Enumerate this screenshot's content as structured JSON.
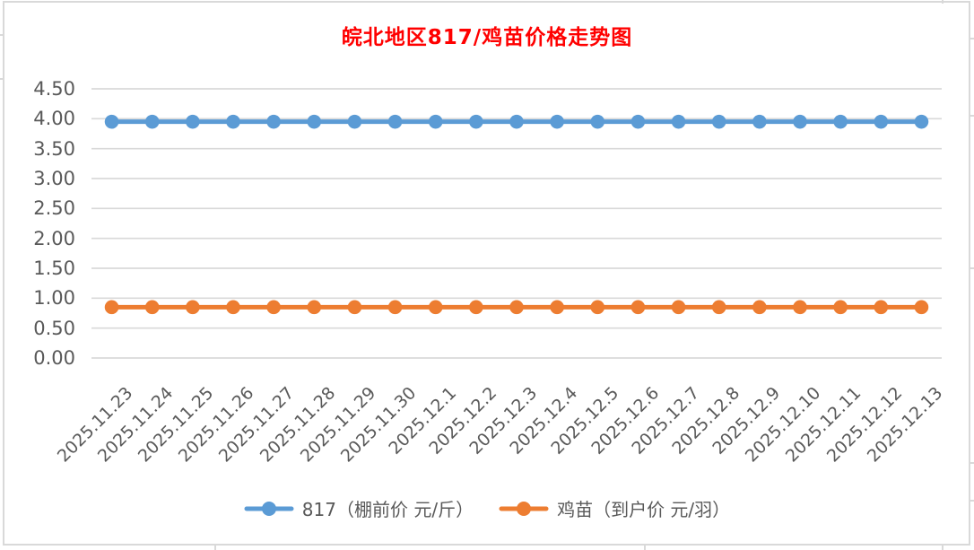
{
  "window": {
    "background": "#ffffff",
    "border_color": "#d9d9d9"
  },
  "title": {
    "text": "皖北地区817/鸡苗价格走势图",
    "color": "#ff0000"
  },
  "axis": {
    "label_color": "#595959",
    "gridline_color": "#d9d9d9"
  },
  "chart_data": {
    "type": "line",
    "title": "皖北地区817/鸡苗价格走势图",
    "xlabel": "",
    "ylabel": "",
    "ylim": [
      0,
      4.5
    ],
    "ytick_step": 0.5,
    "y_tick_labels": [
      "4.50",
      "4.00",
      "3.50",
      "3.00",
      "2.50",
      "2.00",
      "1.50",
      "1.00",
      "0.50",
      "0.00"
    ],
    "grid": "horizontal",
    "legend_position": "bottom",
    "categories": [
      "2025.11.23",
      "2025.11.24",
      "2025.11.25",
      "2025.11.26",
      "2025.11.27",
      "2025.11.28",
      "2025.11.29",
      "2025.11.30",
      "2025.12.1",
      "2025.12.2",
      "2025.12.3",
      "2025.12.4",
      "2025.12.5",
      "2025.12.6",
      "2025.12.7",
      "2025.12.8",
      "2025.12.9",
      "2025.12.10",
      "2025.12.11",
      "2025.12.12",
      "2025.12.13"
    ],
    "series": [
      {
        "name": "817（棚前价 元/斤）",
        "color": "#5B9BD5",
        "values": [
          3.95,
          3.95,
          3.95,
          3.95,
          3.95,
          3.95,
          3.95,
          3.95,
          3.95,
          3.95,
          3.95,
          3.95,
          3.95,
          3.95,
          3.95,
          3.95,
          3.95,
          3.95,
          3.95,
          3.95,
          3.95
        ]
      },
      {
        "name": "鸡苗（到户价 元/羽）",
        "color": "#ED7D31",
        "values": [
          0.85,
          0.85,
          0.85,
          0.85,
          0.85,
          0.85,
          0.85,
          0.85,
          0.85,
          0.85,
          0.85,
          0.85,
          0.85,
          0.85,
          0.85,
          0.85,
          0.85,
          0.85,
          0.85,
          0.85,
          0.85
        ]
      }
    ]
  },
  "legend": {
    "items": [
      {
        "label": "817（棚前价 元/斤）",
        "color": "#5B9BD5"
      },
      {
        "label": "鸡苗（到户价 元/羽）",
        "color": "#ED7D31"
      }
    ]
  }
}
